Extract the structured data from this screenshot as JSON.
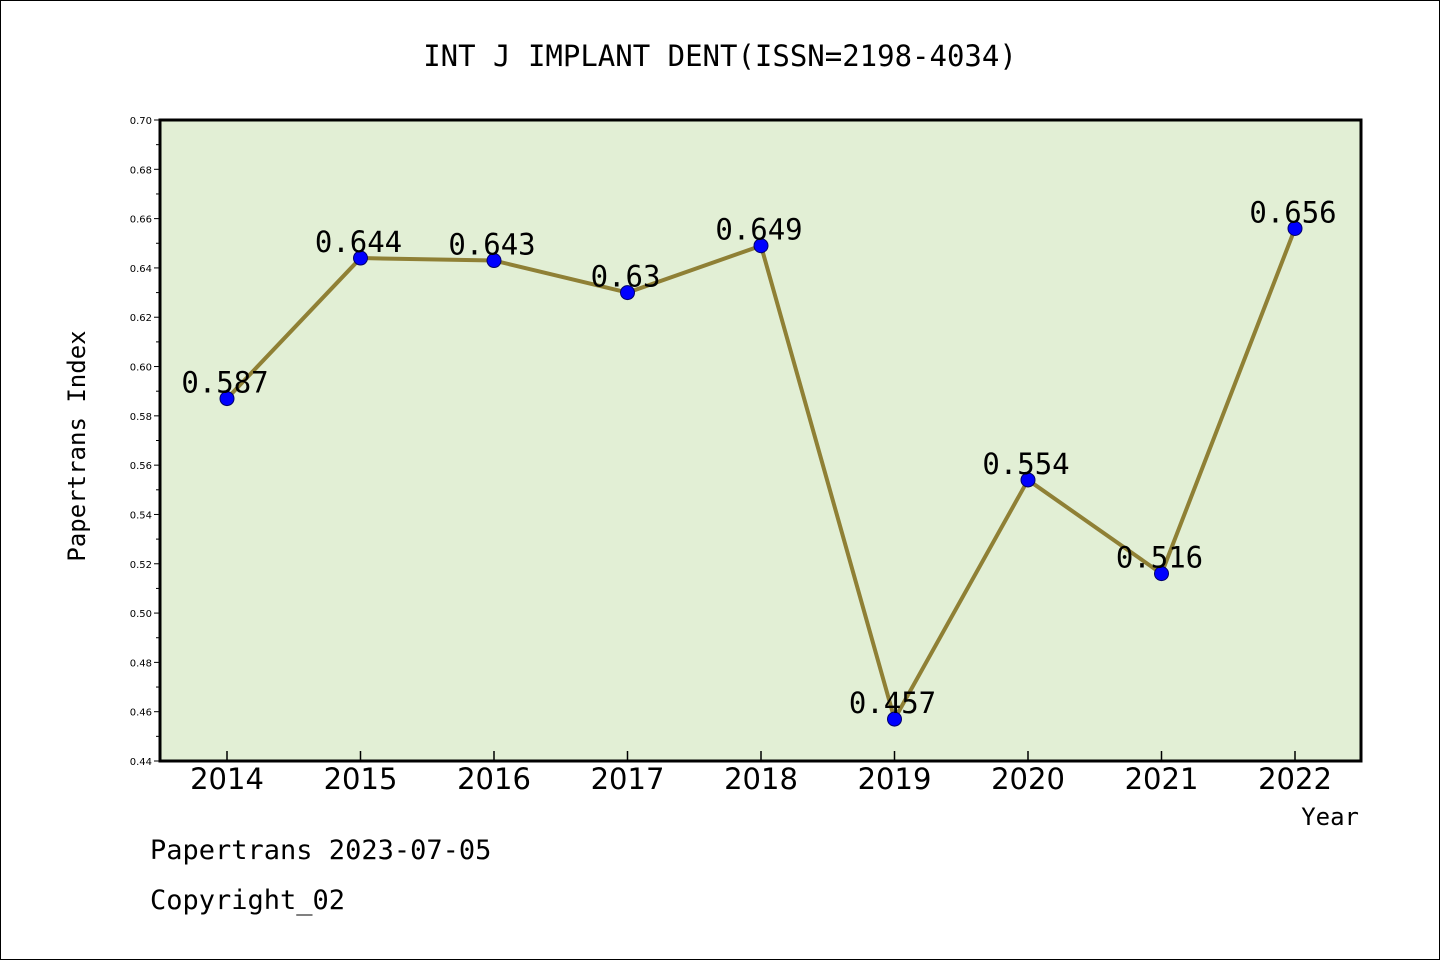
{
  "chart_data": {
    "type": "line",
    "title": "INT J IMPLANT DENT(ISSN=2198-4034)",
    "xlabel": "Year",
    "ylabel": "Papertrans Index",
    "categories": [
      "2014",
      "2015",
      "2016",
      "2017",
      "2018",
      "2019",
      "2020",
      "2021",
      "2022"
    ],
    "series": [
      {
        "values": [
          0.587,
          0.644,
          0.643,
          0.63,
          0.649,
          0.457,
          0.554,
          0.516,
          0.656
        ]
      }
    ],
    "data_labels": [
      "0.587",
      "0.644",
      "0.643",
      "0.63",
      "0.649",
      "0.457",
      "0.554",
      "0.516",
      "0.656"
    ],
    "ylim": [
      0.44,
      0.7
    ],
    "yticks": [
      "0.44",
      "0.46",
      "0.48",
      "0.50",
      "0.52",
      "0.54",
      "0.56",
      "0.58",
      "0.60",
      "0.62",
      "0.64",
      "0.66",
      "0.68",
      "0.70"
    ],
    "grid": false,
    "colors": {
      "plot_background": "#e2efd5",
      "line": "#8f8035",
      "marker": "#0000ff"
    }
  },
  "footer": {
    "line1": "Papertrans 2023-07-05",
    "line2": "Copyright_02"
  }
}
